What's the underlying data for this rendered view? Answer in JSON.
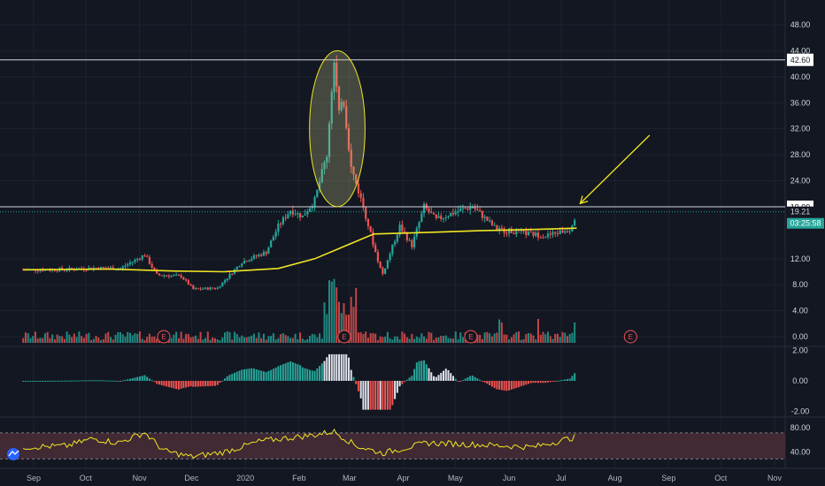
{
  "chart_data": {
    "type": "candlestick",
    "title": "",
    "colors": {
      "background": "#131722",
      "grid": "#1e222d",
      "up": "#26a69a",
      "down": "#ef5350",
      "ma": "#f0e523",
      "annotation": "#f0e523",
      "horizontal_line": "#d1d4dc",
      "rsi_band": "#4a2e36",
      "macd_up": "#26a69a",
      "macd_down": "#ef5350",
      "macd_light": "#e0e3eb"
    },
    "x_labels": [
      "Sep",
      "Oct",
      "Nov",
      "Dec",
      "2020",
      "Feb",
      "Mar",
      "Apr",
      "May",
      "Jun",
      "Jul",
      "Aug",
      "Sep",
      "Oct",
      "Nov"
    ],
    "price_axis": {
      "ticks": [
        "48.00",
        "44.00",
        "40.00",
        "36.00",
        "32.00",
        "28.00",
        "24.00",
        "12.00",
        "8.00",
        "4.00",
        "0.00"
      ],
      "levels": [
        48,
        44,
        40,
        36,
        32,
        28,
        24,
        12,
        8,
        4,
        0
      ],
      "ylim": [
        -1,
        50
      ],
      "log_scale": false
    },
    "price_series": [
      {
        "t": "2019-08-26",
        "v": 10.3
      },
      {
        "t": "2019-09-09",
        "v": 10.3
      },
      {
        "t": "2019-09-23",
        "v": 10.4
      },
      {
        "t": "2019-10-07",
        "v": 10.6
      },
      {
        "t": "2019-10-21",
        "v": 10.5
      },
      {
        "t": "2019-11-04",
        "v": 12.6
      },
      {
        "t": "2019-11-11",
        "v": 9.5
      },
      {
        "t": "2019-11-25",
        "v": 9.3
      },
      {
        "t": "2019-12-02",
        "v": 7.3
      },
      {
        "t": "2019-12-16",
        "v": 7.5
      },
      {
        "t": "2019-12-30",
        "v": 11.5
      },
      {
        "t": "2020-01-13",
        "v": 13.0
      },
      {
        "t": "2020-01-20",
        "v": 17.0
      },
      {
        "t": "2020-01-27",
        "v": 19.5
      },
      {
        "t": "2020-02-03",
        "v": 18.5
      },
      {
        "t": "2020-02-10",
        "v": 21.0
      },
      {
        "t": "2020-02-17",
        "v": 28.0
      },
      {
        "t": "2020-02-21",
        "v": 42.6
      },
      {
        "t": "2020-02-24",
        "v": 34.0
      },
      {
        "t": "2020-02-26",
        "v": 38.0
      },
      {
        "t": "2020-03-02",
        "v": 26.0
      },
      {
        "t": "2020-03-09",
        "v": 20.0
      },
      {
        "t": "2020-03-16",
        "v": 13.0
      },
      {
        "t": "2020-03-20",
        "v": 9.5
      },
      {
        "t": "2020-03-30",
        "v": 17.0
      },
      {
        "t": "2020-04-06",
        "v": 14.0
      },
      {
        "t": "2020-04-13",
        "v": 20.0
      },
      {
        "t": "2020-04-20",
        "v": 18.0
      },
      {
        "t": "2020-05-04",
        "v": 19.5
      },
      {
        "t": "2020-05-11",
        "v": 20.0
      },
      {
        "t": "2020-05-25",
        "v": 16.5
      },
      {
        "t": "2020-06-08",
        "v": 16.0
      },
      {
        "t": "2020-06-22",
        "v": 15.5
      },
      {
        "t": "2020-07-06",
        "v": 16.5
      },
      {
        "t": "2020-07-10",
        "v": 19.2
      }
    ],
    "moving_average": [
      {
        "t": "2019-08-26",
        "v": 10.3
      },
      {
        "t": "2019-10-15",
        "v": 10.4
      },
      {
        "t": "2019-11-20",
        "v": 10.1
      },
      {
        "t": "2019-12-20",
        "v": 10.0
      },
      {
        "t": "2020-01-20",
        "v": 10.5
      },
      {
        "t": "2020-02-10",
        "v": 12.0
      },
      {
        "t": "2020-02-28",
        "v": 14.0
      },
      {
        "t": "2020-03-15",
        "v": 15.8
      },
      {
        "t": "2020-04-10",
        "v": 16.0
      },
      {
        "t": "2020-05-15",
        "v": 16.3
      },
      {
        "t": "2020-06-15",
        "v": 16.5
      },
      {
        "t": "2020-07-10",
        "v": 16.7
      }
    ],
    "volume_markers": [
      "E",
      "E",
      "E",
      "E"
    ],
    "earnings_dates": [
      "2019-11-15",
      "2020-02-27",
      "2020-05-10",
      "2020-08-10"
    ],
    "horizontal_levels": [
      {
        "label": "42.60",
        "value": 42.6
      },
      {
        "label": "19.99",
        "value": 19.99
      }
    ],
    "last_price": {
      "label": "19.21",
      "value": 19.21
    },
    "countdown": "03:25:58",
    "annotations": [
      {
        "type": "ellipse",
        "start": "2020-02-07",
        "end": "2020-03-10",
        "top": 44,
        "bottom": 20
      },
      {
        "type": "arrow",
        "from": {
          "t": "2020-08-21",
          "v": 31
        },
        "to": {
          "t": "2020-07-12",
          "v": 20.5
        }
      }
    ],
    "macd_axis": {
      "ticks": [
        "2.00",
        "0.00",
        "-2.00"
      ],
      "levels": [
        2,
        0,
        -2
      ]
    },
    "rsi_axis": {
      "ticks": [
        "80.00",
        "40.00"
      ],
      "levels": [
        80,
        40
      ],
      "band": [
        30,
        70
      ]
    },
    "rsi_values": [
      {
        "t": "2019-08-26",
        "v": 48
      },
      {
        "t": "2019-09-20",
        "v": 50
      },
      {
        "t": "2019-10-05",
        "v": 62
      },
      {
        "t": "2019-10-20",
        "v": 55
      },
      {
        "t": "2019-11-04",
        "v": 72
      },
      {
        "t": "2019-11-15",
        "v": 42
      },
      {
        "t": "2019-12-01",
        "v": 32
      },
      {
        "t": "2019-12-20",
        "v": 40
      },
      {
        "t": "2020-01-10",
        "v": 58
      },
      {
        "t": "2020-02-10",
        "v": 68
      },
      {
        "t": "2020-02-21",
        "v": 74
      },
      {
        "t": "2020-03-05",
        "v": 50
      },
      {
        "t": "2020-03-20",
        "v": 38
      },
      {
        "t": "2020-04-15",
        "v": 55
      },
      {
        "t": "2020-05-15",
        "v": 52
      },
      {
        "t": "2020-06-15",
        "v": 48
      },
      {
        "t": "2020-07-10",
        "v": 65
      }
    ]
  }
}
